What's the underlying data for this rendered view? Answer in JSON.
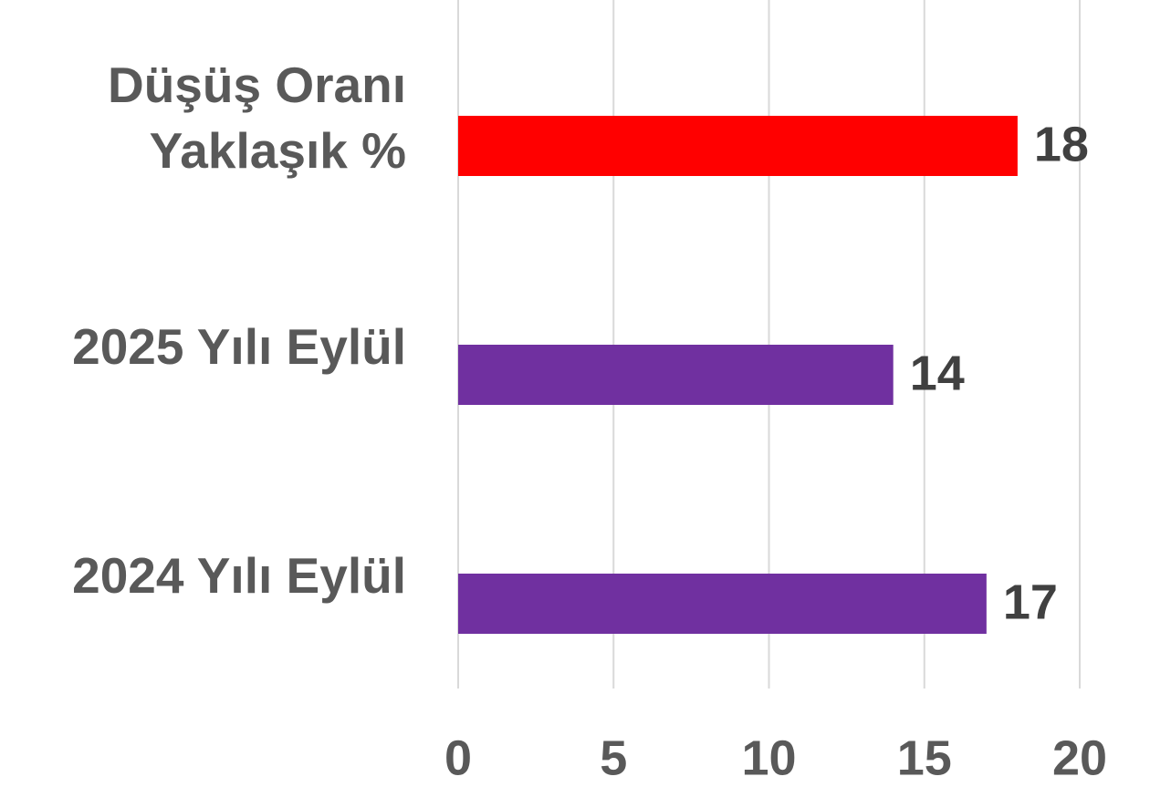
{
  "chart_data": {
    "type": "bar",
    "orientation": "horizontal",
    "categories": [
      "Düşüş Oranı Yaklaşık %",
      "2025 Yılı Eylül",
      "2024 Yılı Eylül"
    ],
    "values": [
      18,
      14,
      17
    ],
    "colors": [
      "#ff0000",
      "#7030a0",
      "#7030a0"
    ],
    "xlim": [
      0,
      20
    ],
    "xticks": [
      0,
      5,
      10,
      15,
      20
    ],
    "grid": true
  }
}
